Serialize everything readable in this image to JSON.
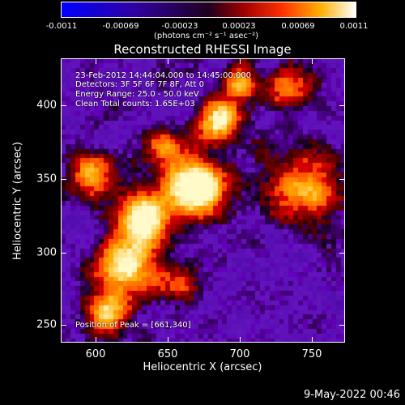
{
  "colorbar": {
    "tick_labels": [
      "-0.0011",
      "-0.00069",
      "-0.00023",
      "0.00023",
      "0.00069",
      "0.0011"
    ],
    "units": "(photons cm⁻² s⁻¹ asec⁻²)"
  },
  "title": "Reconstructed RHESSI Image",
  "info": {
    "line1": "23-Feb-2012 14:44:04.000 to 14:45:00.000",
    "line2": "Detectors: 3F 5F 6F 7F 8F, Att 0",
    "line3": "Energy Range: 25.0 - 50.0 keV",
    "line4": "Clean     Total counts: 1.65E+03",
    "peak": "Position of Peak = [661,340]"
  },
  "axes": {
    "xlabel": "Heliocentric X (arcsec)",
    "ylabel": "Heliocentric Y (arcsec)",
    "xticks": [
      "600",
      "650",
      "700",
      "750"
    ],
    "yticks": [
      "250",
      "300",
      "350",
      "400"
    ]
  },
  "footer_date": "9-May-2022 00:46"
}
